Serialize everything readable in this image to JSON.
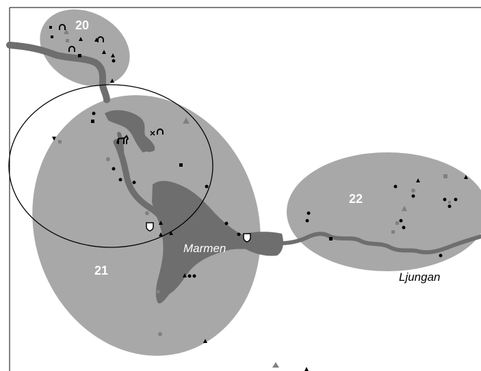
{
  "zones": [
    {
      "id": "zone-20",
      "label": "20"
    },
    {
      "id": "zone-21",
      "label": "21"
    },
    {
      "id": "zone-22",
      "label": "22"
    }
  ],
  "place_names": {
    "lake": "Marmen",
    "river": "Ljungan"
  },
  "colors": {
    "zone_fill": "#a8a8a8",
    "water": "#6e6e6e",
    "zone_label": "#ffffff",
    "symbol_black": "#000000",
    "symbol_gray": "#808080"
  },
  "legend_symbol_types": [
    "dot",
    "triangle",
    "square",
    "horseshoe-icon",
    "shield-icon",
    "ring-cross-icon"
  ]
}
